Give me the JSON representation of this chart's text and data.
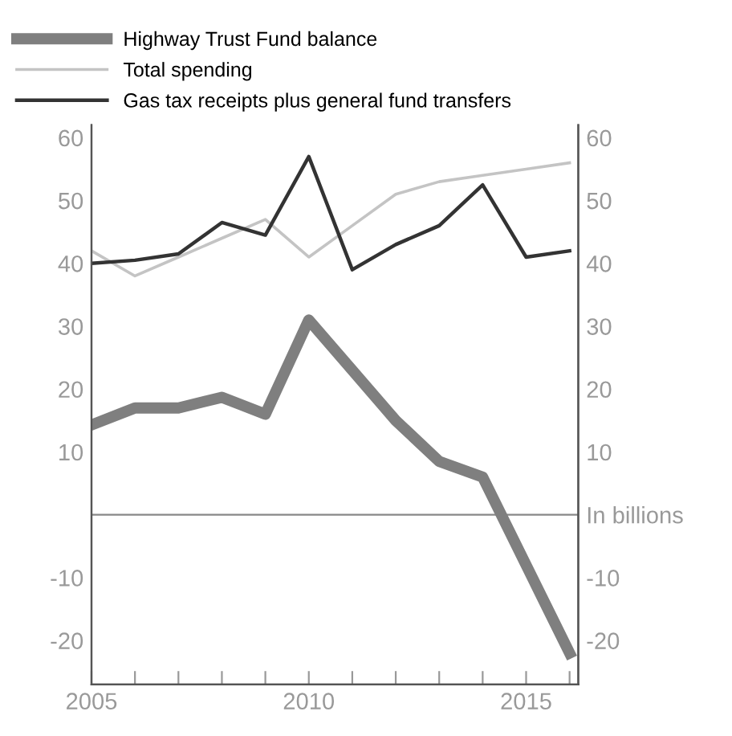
{
  "chart_data": {
    "type": "line",
    "x": [
      2005,
      2006,
      2007,
      2008,
      2009,
      2010,
      2011,
      2012,
      2013,
      2014,
      2015,
      2016
    ],
    "series": [
      {
        "name": "Highway Trust Fund balance",
        "color": "#7f7f7f",
        "values": [
          14.3,
          17,
          17,
          18.7,
          16,
          31,
          23,
          15,
          8.5,
          6,
          -8,
          -22
        ]
      },
      {
        "name": "Total spending",
        "color": "#c4c4c4",
        "values": [
          42,
          38,
          41,
          44,
          47,
          41,
          46,
          51,
          53,
          54,
          55,
          56
        ]
      },
      {
        "name": "Gas tax receipts plus general fund transfers",
        "color": "#333333",
        "values": [
          40,
          40.5,
          41.5,
          46.5,
          44.5,
          57,
          39,
          43,
          46,
          52.5,
          41,
          42
        ]
      }
    ],
    "xlim": [
      2005,
      2016.2
    ],
    "xticks": [
      2005,
      {
        "value": 2006,
        "label": null
      },
      {
        "value": 2007,
        "label": null
      },
      {
        "value": 2008,
        "label": null
      },
      {
        "value": 2009,
        "label": null
      },
      2010,
      {
        "value": 2011,
        "label": null
      },
      {
        "value": 2012,
        "label": null
      },
      {
        "value": 2013,
        "label": null
      },
      {
        "value": 2014,
        "label": null
      },
      2015,
      {
        "value": 2016,
        "label": null
      }
    ],
    "ylim": [
      -27,
      62
    ],
    "yticks": [
      -20,
      -10,
      10,
      20,
      30,
      40,
      50,
      60
    ],
    "y2lim": [
      -27,
      62
    ],
    "y2ticks": [
      -20,
      -10,
      {
        "value": 0,
        "label": "In billions"
      },
      10,
      20,
      30,
      40,
      50,
      60
    ],
    "ref_lines": [
      {
        "axis": "y",
        "value": 0,
        "color": "#888888"
      }
    ],
    "legend": "top left",
    "grid": false,
    "marker": "none",
    "line_style": "solid"
  }
}
